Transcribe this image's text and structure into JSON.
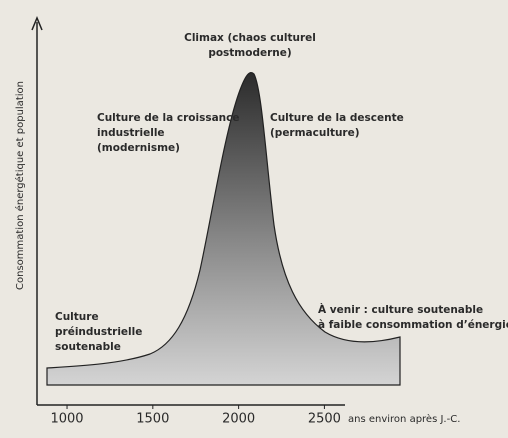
{
  "chart_data": {
    "type": "area",
    "y_label": "Consommation énergétique et population",
    "x_label": "ans environ après J.-C.",
    "xlim": [
      825,
      2620
    ],
    "xticks": [
      1000,
      1500,
      2000,
      2500
    ],
    "annotations": [
      [
        "Climax (chaos culturel",
        "postmoderne)"
      ],
      [
        "Culture de la croissance",
        "industrielle",
        "(modernisme)"
      ],
      [
        "Culture de la descente",
        "(permaculture)"
      ],
      [
        "Culture",
        "préindustrielle",
        "soutenable"
      ],
      [
        "À venir : culture soutenable",
        "à faible consommation d’énergie"
      ]
    ]
  }
}
